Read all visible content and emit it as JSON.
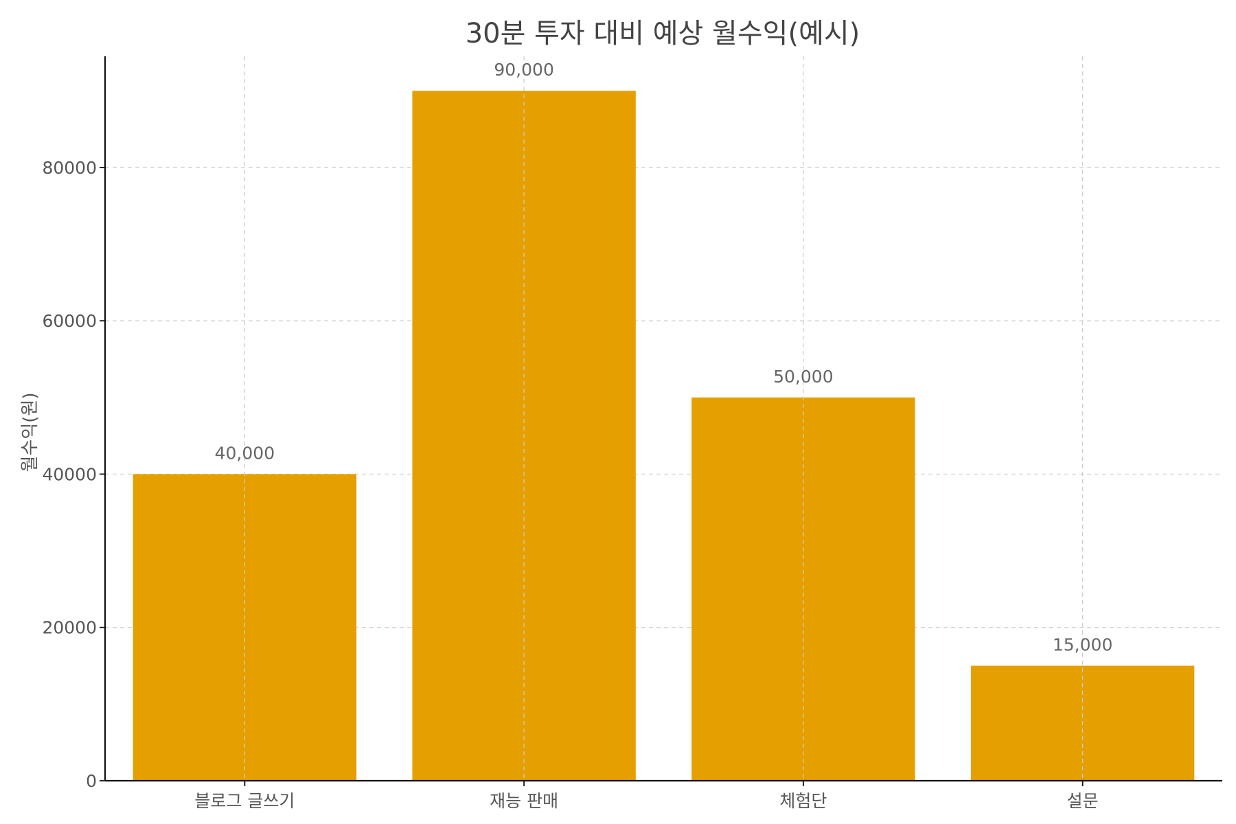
{
  "chart_data": {
    "type": "bar",
    "title": "30분 투자 대비 예상 월수익(예시)",
    "xlabel": "",
    "ylabel": "월수익(원)",
    "categories": [
      "블로그 글쓰기",
      "재능 판매",
      "체험단",
      "설문"
    ],
    "values": [
      40000,
      90000,
      50000,
      15000
    ],
    "data_labels": [
      "40,000",
      "90,000",
      "50,000",
      "15,000"
    ],
    "yticks": [
      0,
      20000,
      40000,
      60000,
      80000
    ],
    "ytick_labels": [
      "0",
      "20000",
      "40000",
      "60000",
      "80000"
    ],
    "ylim": [
      0,
      94500
    ],
    "grid": true,
    "bar_color": "#E5A000"
  }
}
